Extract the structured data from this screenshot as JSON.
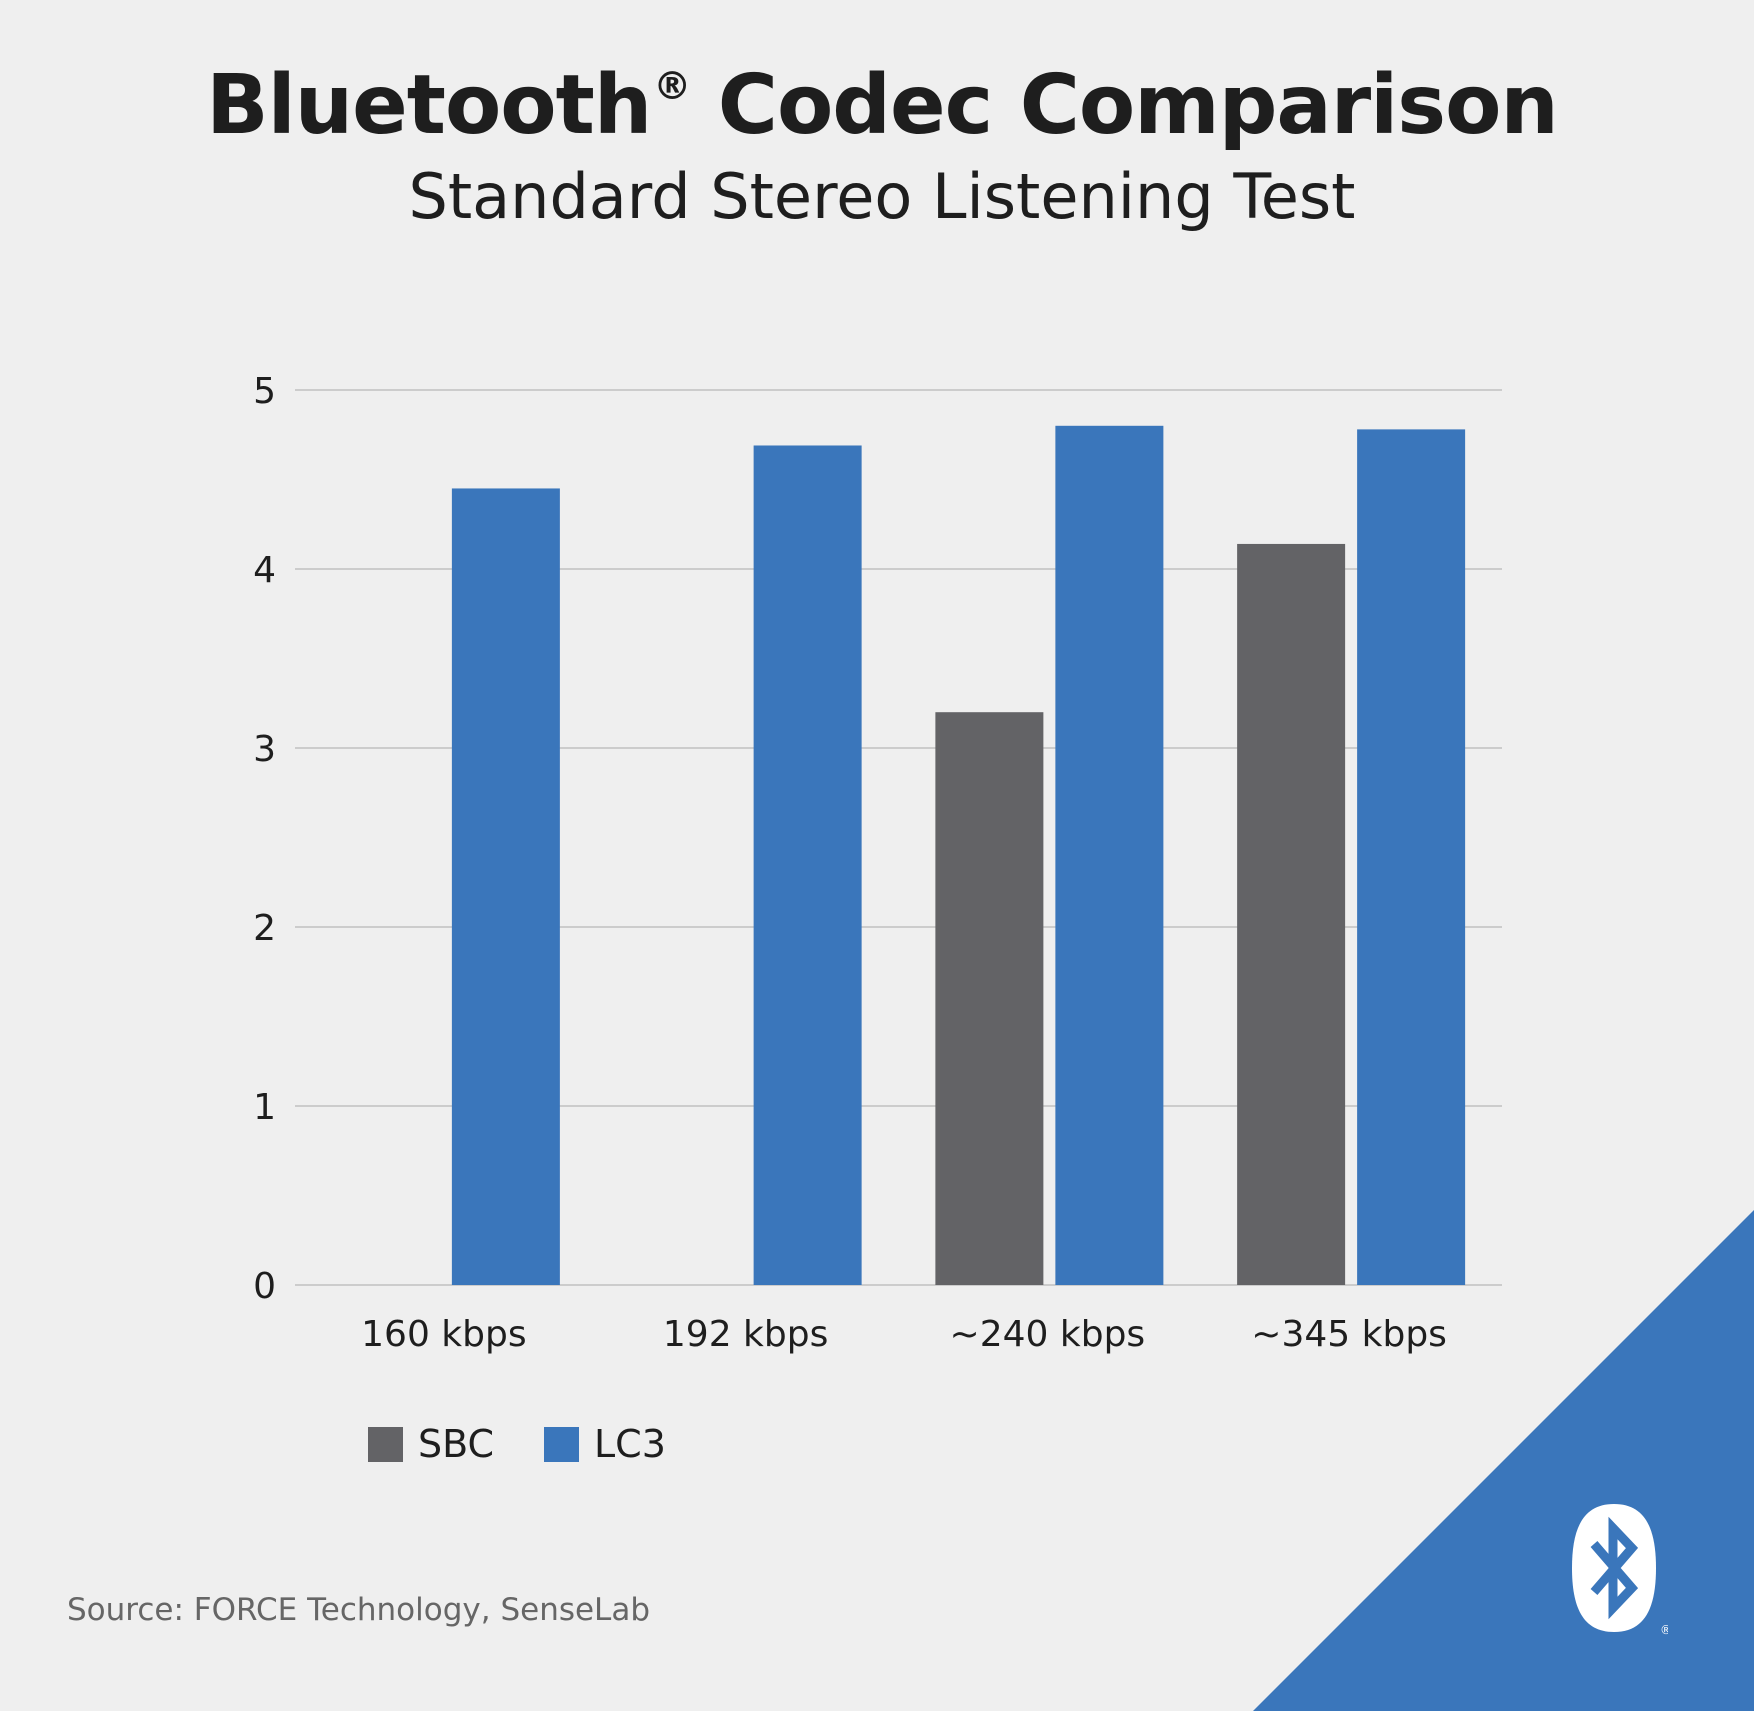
{
  "title": "Bluetooth",
  "title_mark": "®",
  "subtitle": "Standard Stereo Listening Test",
  "source": "Source: FORCE Technology, SenseLab",
  "colors": {
    "SBC": "#636366",
    "LC3": "#3a76bb",
    "background": "#efefef",
    "corner": "#3a76bb",
    "grid": "#b8b8b8"
  },
  "logo_icon": "bluetooth-logo-icon",
  "chart_data": {
    "type": "bar",
    "categories": [
      "160 kbps",
      "192 kbps",
      "~240 kbps",
      "~345 kbps"
    ],
    "series": [
      {
        "name": "SBC",
        "values": [
          null,
          null,
          3.2,
          4.14
        ]
      },
      {
        "name": "LC3",
        "values": [
          4.45,
          4.69,
          4.8,
          4.78
        ]
      }
    ],
    "ylim": [
      0,
      5
    ],
    "yticks": [
      "0",
      "1",
      "2",
      "3",
      "4",
      "5"
    ],
    "xlabel": "",
    "ylabel": "",
    "grid": true,
    "legend": "bottom-left"
  }
}
